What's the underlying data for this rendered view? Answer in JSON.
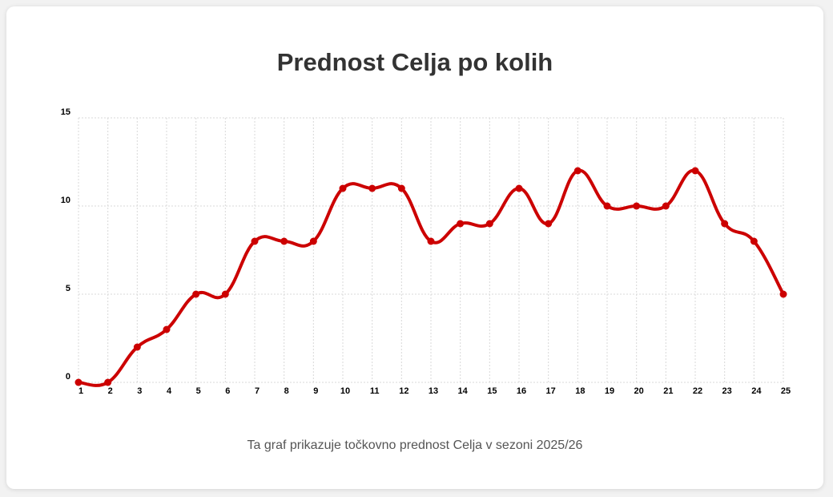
{
  "title": "Prednost Celja po kolih",
  "caption": "Ta graf prikazuje točkovno prednost Celja v sezoni 2025/26",
  "colors": {
    "line": "#cc0000",
    "grid": "#d9d9d9",
    "text": "#333333",
    "background": "#ffffff"
  },
  "chart_data": {
    "type": "line",
    "title": "Prednost Celja po kolih",
    "xlabel": "",
    "ylabel": "",
    "x": [
      1,
      2,
      3,
      4,
      5,
      6,
      7,
      8,
      9,
      10,
      11,
      12,
      13,
      14,
      15,
      16,
      17,
      18,
      19,
      20,
      21,
      22,
      23,
      24,
      25
    ],
    "series": [
      {
        "name": "",
        "values": [
          0,
          0,
          2,
          3,
          5,
          5,
          8,
          8,
          8,
          11,
          11,
          11,
          8,
          9,
          9,
          11,
          9,
          12,
          10,
          10,
          10,
          12,
          9,
          8,
          5
        ]
      }
    ],
    "ylim": [
      0,
      15
    ],
    "yticks": [
      0,
      5,
      10,
      15
    ],
    "grid": true,
    "grid_style": "dotted",
    "smooth": true,
    "markers": true,
    "legend": false
  }
}
